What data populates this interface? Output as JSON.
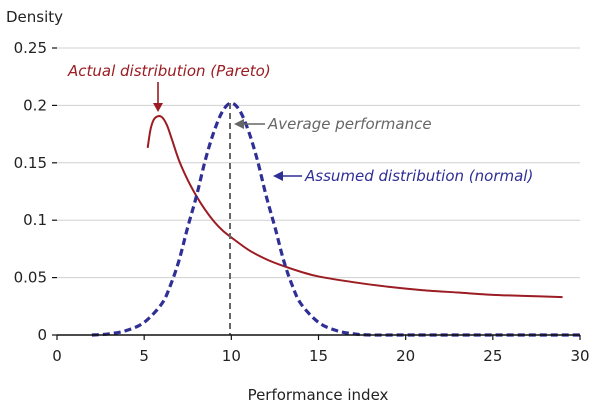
{
  "colors": {
    "pareto": "#9b1c22",
    "normal": "#2f2f96",
    "mean_line": "#666666",
    "gridline": "#d0d0d0",
    "axis": "#111111"
  },
  "chart_data": {
    "type": "line",
    "xlabel": "Performance index",
    "ylabel": "Density",
    "xlim": [
      0,
      30
    ],
    "ylim": [
      0,
      0.25
    ],
    "xticks": [
      0,
      5,
      10,
      15,
      20,
      25,
      30
    ],
    "yticks": [
      0,
      0.05,
      0.1,
      0.15,
      0.2,
      0.25
    ],
    "ytick_labels": [
      "0",
      "0.05",
      "0.1",
      "0.15",
      "0.2",
      "0.25"
    ],
    "grid": "horizontal",
    "series": [
      {
        "name": "Actual distribution (Pareto)",
        "style": "solid",
        "x": [
          5.2,
          5.35,
          5.5,
          5.7,
          6.0,
          6.3,
          6.6,
          7.0,
          7.5,
          8.0,
          8.5,
          9.0,
          9.5,
          10.0,
          11.0,
          12.0,
          13.0,
          14.0,
          15.0,
          17.0,
          19.0,
          21.0,
          23.0,
          25.0,
          27.0,
          29.0
        ],
        "y": [
          0.163,
          0.178,
          0.186,
          0.19,
          0.19,
          0.183,
          0.17,
          0.152,
          0.135,
          0.121,
          0.109,
          0.099,
          0.091,
          0.085,
          0.074,
          0.066,
          0.06,
          0.055,
          0.051,
          0.046,
          0.042,
          0.039,
          0.037,
          0.035,
          0.034,
          0.033
        ]
      },
      {
        "name": "Assumed distribution (normal)",
        "style": "dashed",
        "x": [
          2,
          3,
          4,
          5,
          6,
          6.5,
          7,
          7.5,
          8,
          8.5,
          9,
          9.5,
          10,
          10.5,
          11,
          11.5,
          12,
          12.5,
          13,
          13.5,
          14,
          15,
          16,
          17,
          18,
          20,
          25,
          30
        ],
        "y": [
          0.0,
          0.001,
          0.004,
          0.011,
          0.027,
          0.043,
          0.065,
          0.094,
          0.121,
          0.152,
          0.177,
          0.195,
          0.202,
          0.195,
          0.177,
          0.152,
          0.121,
          0.094,
          0.065,
          0.043,
          0.027,
          0.011,
          0.004,
          0.001,
          0.0,
          0.0,
          0.0,
          0.0
        ]
      }
    ],
    "annotations": [
      {
        "text": "Actual distribution (Pareto)",
        "target": "pareto-peak"
      },
      {
        "text": "Average performance",
        "target": "mean-line",
        "x": 10
      },
      {
        "text": "Assumed distribution (normal)",
        "target": "normal-curve"
      }
    ]
  }
}
